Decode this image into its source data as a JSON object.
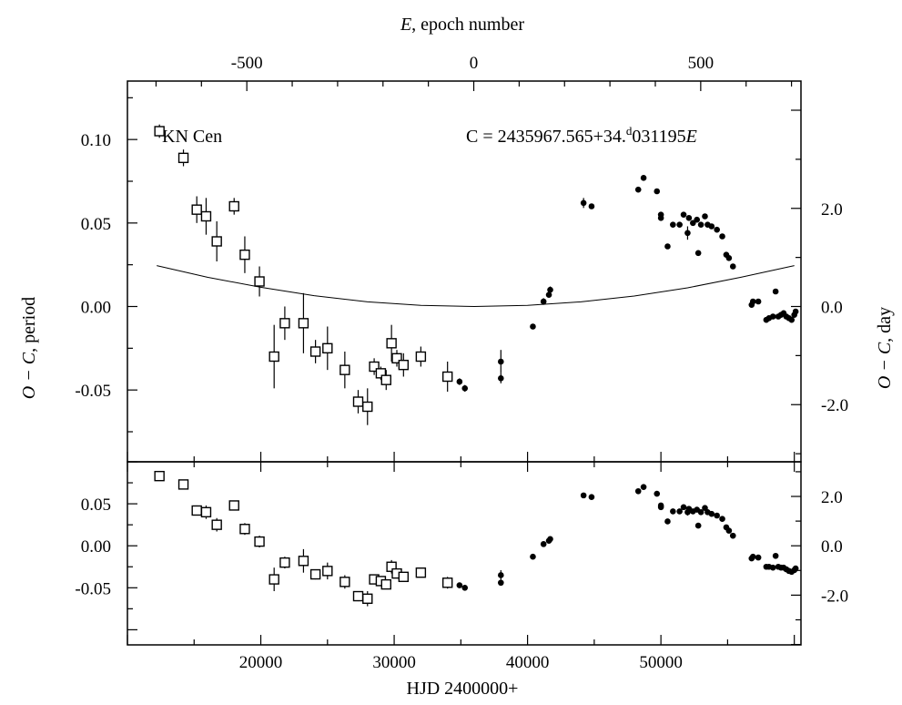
{
  "chart_data": {
    "type": "scatter",
    "top_axis_label_var": "E",
    "top_axis_label_rest": ", epoch number",
    "top_axis_ticks": [
      "-500",
      "0",
      "500"
    ],
    "xlabel": "HJD 2400000+",
    "x_ticks": [
      "20000",
      "30000",
      "40000",
      "50000"
    ],
    "xlim": [
      10000,
      60500
    ],
    "ylabel_left_var": "O − C",
    "ylabel_left_rest": ", period",
    "ylabel_right_var": "O − C",
    "ylabel_right_rest": ", day",
    "star_label": "KN Cen",
    "ephemeris": {
      "prefix": "C = 2435967.565+34.",
      "superscript": "d",
      "suffix": "031195",
      "var": "E"
    },
    "top_panel": {
      "ylim": [
        -0.093,
        0.135
      ],
      "y_ticks": [
        "0.10",
        "0.05",
        "0.00",
        "-0.05"
      ],
      "y_ticks_right": [
        "2.0",
        "0.0",
        "-2.0"
      ],
      "fit_curve": {
        "x": [
          12200,
          16000,
          20000,
          24000,
          28000,
          32000,
          36000,
          40000,
          44000,
          48000,
          52000,
          56000,
          60000
        ],
        "y": [
          0.0245,
          0.0175,
          0.0115,
          0.0065,
          0.0028,
          0.0007,
          0.0,
          0.0007,
          0.0028,
          0.0063,
          0.0112,
          0.0175,
          0.0245
        ]
      },
      "photographic": [
        {
          "x": 12400,
          "y": 0.105,
          "err": 0.004
        },
        {
          "x": 14200,
          "y": 0.089,
          "err": 0.005
        },
        {
          "x": 15200,
          "y": 0.058,
          "err": 0.008
        },
        {
          "x": 15900,
          "y": 0.054,
          "err": 0.011
        },
        {
          "x": 16700,
          "y": 0.039,
          "err": 0.012
        },
        {
          "x": 18000,
          "y": 0.06,
          "err": 0.005
        },
        {
          "x": 18800,
          "y": 0.031,
          "err": 0.011
        },
        {
          "x": 19900,
          "y": 0.015,
          "err": 0.009
        },
        {
          "x": 21000,
          "y": -0.03,
          "err": 0.019
        },
        {
          "x": 21800,
          "y": -0.01,
          "err": 0.01
        },
        {
          "x": 23200,
          "y": -0.01,
          "err": 0.018
        },
        {
          "x": 24100,
          "y": -0.027,
          "err": 0.007
        },
        {
          "x": 25000,
          "y": -0.025,
          "err": 0.013
        },
        {
          "x": 26300,
          "y": -0.038,
          "err": 0.011
        },
        {
          "x": 27300,
          "y": -0.057,
          "err": 0.007
        },
        {
          "x": 28000,
          "y": -0.06,
          "err": 0.011
        },
        {
          "x": 28500,
          "y": -0.036,
          "err": 0.005
        },
        {
          "x": 29000,
          "y": -0.04,
          "err": 0.004
        },
        {
          "x": 29400,
          "y": -0.044,
          "err": 0.006
        },
        {
          "x": 29800,
          "y": -0.022,
          "err": 0.011
        },
        {
          "x": 30200,
          "y": -0.031,
          "err": 0.005
        },
        {
          "x": 30700,
          "y": -0.035,
          "err": 0.007
        },
        {
          "x": 32000,
          "y": -0.03,
          "err": 0.006
        },
        {
          "x": 34000,
          "y": -0.042,
          "err": 0.009
        }
      ],
      "photoelectric": [
        {
          "x": 34900,
          "y": -0.045,
          "err": 0.002
        },
        {
          "x": 35300,
          "y": -0.049,
          "err": 0.002
        },
        {
          "x": 38000,
          "y": -0.033,
          "err": 0.007
        },
        {
          "x": 38000,
          "y": -0.043,
          "err": 0.003
        },
        {
          "x": 40400,
          "y": -0.012,
          "err": 0
        },
        {
          "x": 41200,
          "y": 0.003,
          "err": 0.002
        },
        {
          "x": 41600,
          "y": 0.007,
          "err": 0
        },
        {
          "x": 41700,
          "y": 0.01,
          "err": 0.002
        },
        {
          "x": 44200,
          "y": 0.062,
          "err": 0.003
        },
        {
          "x": 44800,
          "y": 0.06,
          "err": 0
        },
        {
          "x": 48300,
          "y": 0.07,
          "err": 0
        },
        {
          "x": 48700,
          "y": 0.077,
          "err": 0
        },
        {
          "x": 49700,
          "y": 0.069,
          "err": 0
        },
        {
          "x": 50000,
          "y": 0.055,
          "err": 0
        },
        {
          "x": 50000,
          "y": 0.053,
          "err": 0
        },
        {
          "x": 50500,
          "y": 0.036,
          "err": 0
        },
        {
          "x": 50900,
          "y": 0.049,
          "err": 0
        },
        {
          "x": 51400,
          "y": 0.049,
          "err": 0
        },
        {
          "x": 51700,
          "y": 0.055,
          "err": 0
        },
        {
          "x": 52000,
          "y": 0.044,
          "err": 0.004
        },
        {
          "x": 52100,
          "y": 0.053,
          "err": 0
        },
        {
          "x": 52400,
          "y": 0.05,
          "err": 0
        },
        {
          "x": 52700,
          "y": 0.052,
          "err": 0
        },
        {
          "x": 52800,
          "y": 0.032,
          "err": 0
        },
        {
          "x": 53000,
          "y": 0.049,
          "err": 0
        },
        {
          "x": 53300,
          "y": 0.054,
          "err": 0
        },
        {
          "x": 53500,
          "y": 0.049,
          "err": 0
        },
        {
          "x": 53800,
          "y": 0.048,
          "err": 0
        },
        {
          "x": 54200,
          "y": 0.046,
          "err": 0
        },
        {
          "x": 54600,
          "y": 0.042,
          "err": 0
        },
        {
          "x": 54900,
          "y": 0.031,
          "err": 0
        },
        {
          "x": 55100,
          "y": 0.029,
          "err": 0
        },
        {
          "x": 55400,
          "y": 0.024,
          "err": 0
        },
        {
          "x": 56800,
          "y": 0.001,
          "err": 0
        },
        {
          "x": 56900,
          "y": 0.003,
          "err": 0
        },
        {
          "x": 57300,
          "y": 0.003,
          "err": 0
        },
        {
          "x": 57900,
          "y": -0.008,
          "err": 0
        },
        {
          "x": 58100,
          "y": -0.007,
          "err": 0
        },
        {
          "x": 58400,
          "y": -0.006,
          "err": 0
        },
        {
          "x": 58600,
          "y": 0.009,
          "err": 0
        },
        {
          "x": 58800,
          "y": -0.006,
          "err": 0
        },
        {
          "x": 59000,
          "y": -0.005,
          "err": 0
        },
        {
          "x": 59200,
          "y": -0.004,
          "err": 0
        },
        {
          "x": 59400,
          "y": -0.006,
          "err": 0
        },
        {
          "x": 59600,
          "y": -0.007,
          "err": 0
        },
        {
          "x": 59800,
          "y": -0.008,
          "err": 0
        },
        {
          "x": 60000,
          "y": -0.005,
          "err": 0
        },
        {
          "x": 60100,
          "y": -0.003,
          "err": 0
        }
      ]
    },
    "bottom_panel": {
      "ylim": [
        -0.118,
        0.1
      ],
      "y_ticks": [
        "0.05",
        "0.00",
        "-0.05"
      ],
      "y_ticks_right": [
        "2.0",
        "0.0",
        "-2.0"
      ],
      "photographic": [
        {
          "x": 12400,
          "y": 0.083,
          "err": 0.004
        },
        {
          "x": 14200,
          "y": 0.073,
          "err": 0.005
        },
        {
          "x": 15200,
          "y": 0.042,
          "err": 0.006
        },
        {
          "x": 15900,
          "y": 0.04,
          "err": 0.008
        },
        {
          "x": 16700,
          "y": 0.025,
          "err": 0.008
        },
        {
          "x": 18000,
          "y": 0.048,
          "err": 0.005
        },
        {
          "x": 18800,
          "y": 0.02,
          "err": 0.007
        },
        {
          "x": 19900,
          "y": 0.005,
          "err": 0.007
        },
        {
          "x": 21000,
          "y": -0.04,
          "err": 0.014
        },
        {
          "x": 21800,
          "y": -0.02,
          "err": 0.007
        },
        {
          "x": 23200,
          "y": -0.018,
          "err": 0.014
        },
        {
          "x": 24100,
          "y": -0.034,
          "err": 0.006
        },
        {
          "x": 25000,
          "y": -0.03,
          "err": 0.01
        },
        {
          "x": 26300,
          "y": -0.043,
          "err": 0.008
        },
        {
          "x": 27300,
          "y": -0.06,
          "err": 0.006
        },
        {
          "x": 28000,
          "y": -0.063,
          "err": 0.009
        },
        {
          "x": 28500,
          "y": -0.04,
          "err": 0.004
        },
        {
          "x": 29000,
          "y": -0.042,
          "err": 0.004
        },
        {
          "x": 29400,
          "y": -0.046,
          "err": 0.005
        },
        {
          "x": 29800,
          "y": -0.025,
          "err": 0.008
        },
        {
          "x": 30200,
          "y": -0.033,
          "err": 0.004
        },
        {
          "x": 30700,
          "y": -0.037,
          "err": 0.005
        },
        {
          "x": 32000,
          "y": -0.032,
          "err": 0.005
        },
        {
          "x": 34000,
          "y": -0.044,
          "err": 0.007
        }
      ],
      "photoelectric": [
        {
          "x": 34900,
          "y": -0.047,
          "err": 0.002
        },
        {
          "x": 35300,
          "y": -0.05,
          "err": 0.002
        },
        {
          "x": 38000,
          "y": -0.035,
          "err": 0.006
        },
        {
          "x": 38000,
          "y": -0.044,
          "err": 0.003
        },
        {
          "x": 40400,
          "y": -0.013,
          "err": 0
        },
        {
          "x": 41200,
          "y": 0.002,
          "err": 0.002
        },
        {
          "x": 41600,
          "y": 0.006,
          "err": 0
        },
        {
          "x": 41700,
          "y": 0.008,
          "err": 0.002
        },
        {
          "x": 44200,
          "y": 0.06,
          "err": 0.003
        },
        {
          "x": 44800,
          "y": 0.058,
          "err": 0
        },
        {
          "x": 48300,
          "y": 0.065,
          "err": 0
        },
        {
          "x": 48700,
          "y": 0.07,
          "err": 0
        },
        {
          "x": 49700,
          "y": 0.062,
          "err": 0
        },
        {
          "x": 50000,
          "y": 0.048,
          "err": 0
        },
        {
          "x": 50000,
          "y": 0.046,
          "err": 0
        },
        {
          "x": 50500,
          "y": 0.029,
          "err": 0
        },
        {
          "x": 50900,
          "y": 0.041,
          "err": 0
        },
        {
          "x": 51400,
          "y": 0.041,
          "err": 0
        },
        {
          "x": 51700,
          "y": 0.046,
          "err": 0
        },
        {
          "x": 52000,
          "y": 0.04,
          "err": 0.004
        },
        {
          "x": 52100,
          "y": 0.044,
          "err": 0
        },
        {
          "x": 52400,
          "y": 0.041,
          "err": 0
        },
        {
          "x": 52700,
          "y": 0.043,
          "err": 0
        },
        {
          "x": 52800,
          "y": 0.024,
          "err": 0
        },
        {
          "x": 53000,
          "y": 0.04,
          "err": 0
        },
        {
          "x": 53300,
          "y": 0.045,
          "err": 0
        },
        {
          "x": 53500,
          "y": 0.04,
          "err": 0
        },
        {
          "x": 53800,
          "y": 0.038,
          "err": 0
        },
        {
          "x": 54200,
          "y": 0.036,
          "err": 0
        },
        {
          "x": 54600,
          "y": 0.032,
          "err": 0
        },
        {
          "x": 54900,
          "y": 0.022,
          "err": 0
        },
        {
          "x": 55100,
          "y": 0.018,
          "err": 0
        },
        {
          "x": 55400,
          "y": 0.012,
          "err": 0
        },
        {
          "x": 56800,
          "y": -0.015,
          "err": 0
        },
        {
          "x": 56900,
          "y": -0.013,
          "err": 0
        },
        {
          "x": 57300,
          "y": -0.014,
          "err": 0
        },
        {
          "x": 57900,
          "y": -0.025,
          "err": 0
        },
        {
          "x": 58100,
          "y": -0.025,
          "err": 0
        },
        {
          "x": 58400,
          "y": -0.026,
          "err": 0
        },
        {
          "x": 58600,
          "y": -0.012,
          "err": 0
        },
        {
          "x": 58800,
          "y": -0.025,
          "err": 0
        },
        {
          "x": 59000,
          "y": -0.026,
          "err": 0
        },
        {
          "x": 59200,
          "y": -0.026,
          "err": 0
        },
        {
          "x": 59400,
          "y": -0.028,
          "err": 0
        },
        {
          "x": 59600,
          "y": -0.03,
          "err": 0
        },
        {
          "x": 59800,
          "y": -0.031,
          "err": 0
        },
        {
          "x": 60000,
          "y": -0.029,
          "err": 0
        },
        {
          "x": 60100,
          "y": -0.027,
          "err": 0
        }
      ]
    }
  }
}
